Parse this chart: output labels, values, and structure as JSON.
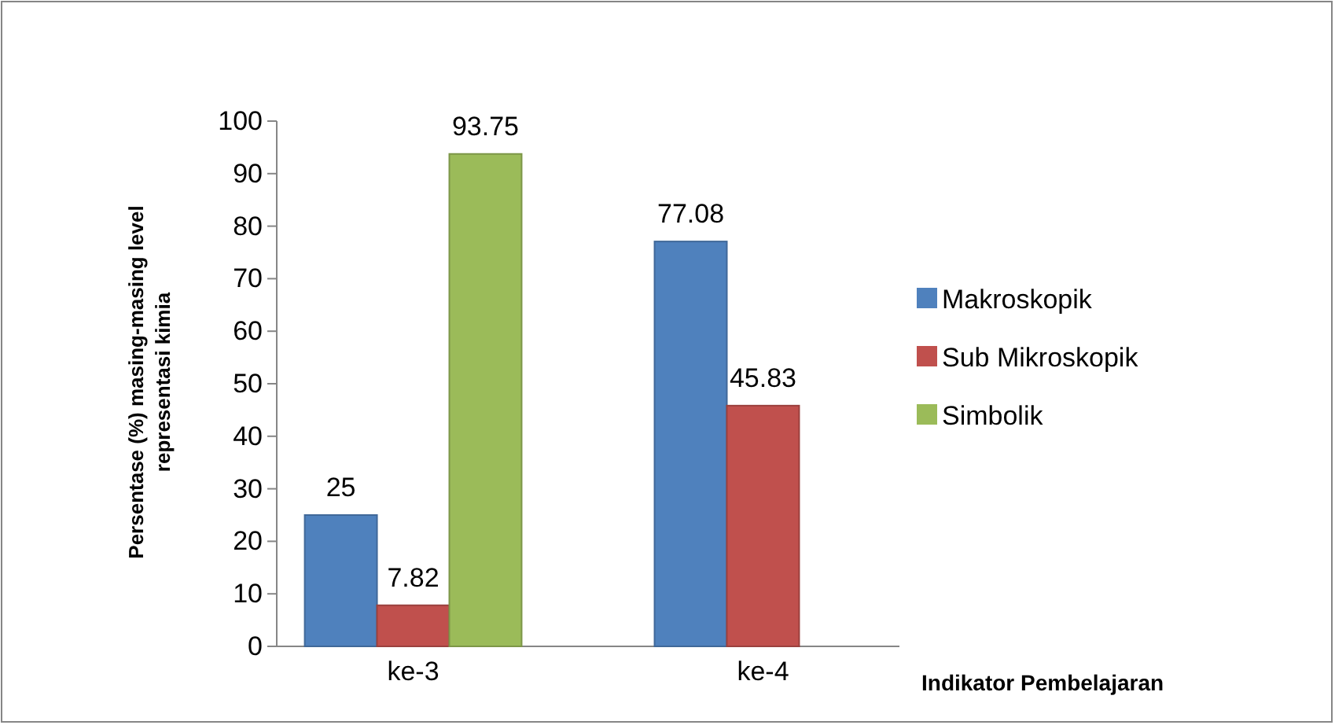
{
  "chart_data": {
    "type": "bar",
    "xlabel": "Indikator Pembelajaran",
    "ylabel": "Persentase (%) masing-masing level representasi kimia",
    "categories": [
      "ke-3",
      "ke-4"
    ],
    "series": [
      {
        "name": "Makroskopik",
        "color": "#4f81bd",
        "values": [
          25,
          77.08
        ]
      },
      {
        "name": "Sub Mikroskopik",
        "color": "#c0504d",
        "values": [
          7.82,
          45.83
        ]
      },
      {
        "name": "Simbolik",
        "color": "#9bbb59",
        "values": [
          93.75,
          null
        ]
      }
    ],
    "ylim": [
      0,
      100
    ],
    "yticks": [
      0,
      10,
      20,
      30,
      40,
      50,
      60,
      70,
      80,
      90,
      100
    ],
    "grid": false,
    "legend": "right",
    "data_labels": true
  }
}
